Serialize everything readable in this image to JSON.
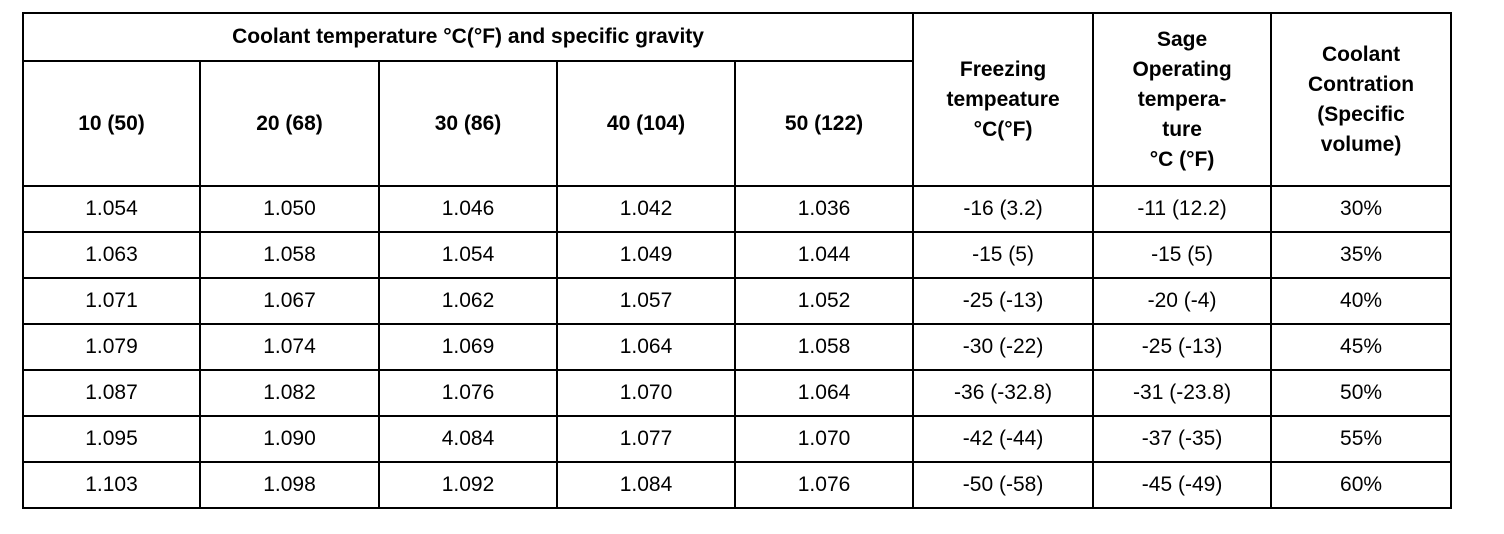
{
  "table": {
    "group_header": "Coolant temperature °C(°F) and specific gravity",
    "temp_headers": [
      "10 (50)",
      "20 (68)",
      "30 (86)",
      "40 (104)",
      "50 (122)"
    ],
    "side_headers": [
      [
        "Freezing",
        "tempeature",
        "°C(°F)"
      ],
      [
        "Sage",
        "Operating",
        "tempera-",
        "ture",
        "°C (°F)"
      ],
      [
        "Coolant",
        "Contration",
        "(Specific",
        "volume)"
      ]
    ],
    "rows": [
      [
        "1.054",
        "1.050",
        "1.046",
        "1.042",
        "1.036",
        "-16 (3.2)",
        "-11 (12.2)",
        "30%"
      ],
      [
        "1.063",
        "1.058",
        "1.054",
        "1.049",
        "1.044",
        "-15 (5)",
        "-15 (5)",
        "35%"
      ],
      [
        "1.071",
        "1.067",
        "1.062",
        "1.057",
        "1.052",
        "-25 (-13)",
        "-20 (-4)",
        "40%"
      ],
      [
        "1.079",
        "1.074",
        "1.069",
        "1.064",
        "1.058",
        "-30 (-22)",
        "-25 (-13)",
        "45%"
      ],
      [
        "1.087",
        "1.082",
        "1.076",
        "1.070",
        "1.064",
        "-36 (-32.8)",
        "-31 (-23.8)",
        "50%"
      ],
      [
        "1.095",
        "1.090",
        "4.084",
        "1.077",
        "1.070",
        "-42 (-44)",
        "-37 (-35)",
        "55%"
      ],
      [
        "1.103",
        "1.098",
        "1.092",
        "1.084",
        "1.076",
        "-50 (-58)",
        "-45 (-49)",
        "60%"
      ]
    ]
  }
}
